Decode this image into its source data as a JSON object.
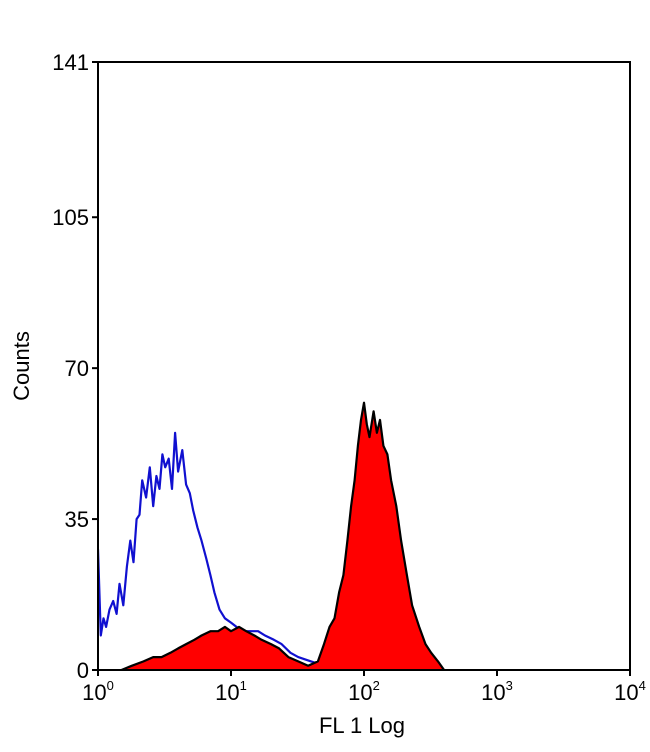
{
  "chart_data": {
    "type": "area",
    "title": "",
    "xlabel": "FL 1 Log",
    "ylabel": "Counts",
    "x_scale": "log",
    "xlim": [
      1,
      10000
    ],
    "ylim": [
      0,
      141
    ],
    "yticks": [
      {
        "value": 0,
        "label": "0"
      },
      {
        "value": 35,
        "label": "35"
      },
      {
        "value": 70,
        "label": "70"
      },
      {
        "value": 105,
        "label": "105"
      },
      {
        "value": 141,
        "label": "141"
      }
    ],
    "xticks": [
      {
        "value": 1,
        "base": "10",
        "exp": "0"
      },
      {
        "value": 10,
        "base": "10",
        "exp": "1"
      },
      {
        "value": 100,
        "base": "10",
        "exp": "2"
      },
      {
        "value": 1000,
        "base": "10",
        "exp": "3"
      },
      {
        "value": 10000,
        "base": "10",
        "exp": "4"
      }
    ],
    "grid": false,
    "series": [
      {
        "color": "#1010d0",
        "fill": "none",
        "x": [
          1.0,
          1.05,
          1.1,
          1.15,
          1.22,
          1.3,
          1.38,
          1.45,
          1.55,
          1.65,
          1.75,
          1.85,
          1.95,
          2.05,
          2.15,
          2.3,
          2.45,
          2.6,
          2.75,
          2.9,
          3.05,
          3.2,
          3.4,
          3.6,
          3.8,
          4.0,
          4.3,
          4.6,
          4.9,
          5.2,
          5.6,
          6.0,
          6.5,
          7.0,
          7.5,
          8.2,
          9.0,
          10.0,
          11.0,
          12.5,
          14.0,
          16.0,
          18.0,
          21.0,
          24.0,
          28.0,
          32.0,
          40.0,
          50.0,
          60.0
        ],
        "values": [
          28,
          8,
          12,
          10,
          14,
          16,
          13,
          20,
          15,
          24,
          30,
          25,
          35,
          36,
          44,
          40,
          47,
          38,
          45,
          42,
          50,
          47,
          49,
          42,
          55,
          46,
          51,
          43,
          41,
          37,
          33,
          30,
          26,
          22,
          18,
          14,
          12,
          11,
          10,
          9,
          9,
          9,
          8,
          7,
          6,
          4,
          3,
          2,
          1,
          0
        ]
      },
      {
        "color": "#000000",
        "fill": "#ff0000",
        "x": [
          1.5,
          1.8,
          2.2,
          2.6,
          3.0,
          3.5,
          4.0,
          4.6,
          5.3,
          6.0,
          7.0,
          8.0,
          9.0,
          10.0,
          11.5,
          13.0,
          15.0,
          17.0,
          20.0,
          23.0,
          27.0,
          32.0,
          38.0,
          45.0,
          50.0,
          55.0,
          60.0,
          65.0,
          70.0,
          75.0,
          80.0,
          85.0,
          90.0,
          95.0,
          100.0,
          105.0,
          110.0,
          118.0,
          125.0,
          132.0,
          140.0,
          150.0,
          160.0,
          175.0,
          190.0,
          210.0,
          230.0,
          260.0,
          290.0,
          320.0,
          360.0,
          400.0
        ],
        "values": [
          0,
          1,
          2,
          3,
          3,
          4,
          5,
          6,
          7,
          8,
          9,
          9,
          10,
          9,
          10,
          9,
          8,
          7,
          6,
          5,
          3,
          2,
          1,
          2,
          6,
          10,
          12,
          18,
          22,
          30,
          38,
          44,
          52,
          58,
          62,
          57,
          54,
          60,
          55,
          58,
          52,
          50,
          44,
          38,
          30,
          22,
          15,
          10,
          6,
          4,
          2,
          0
        ]
      }
    ]
  }
}
